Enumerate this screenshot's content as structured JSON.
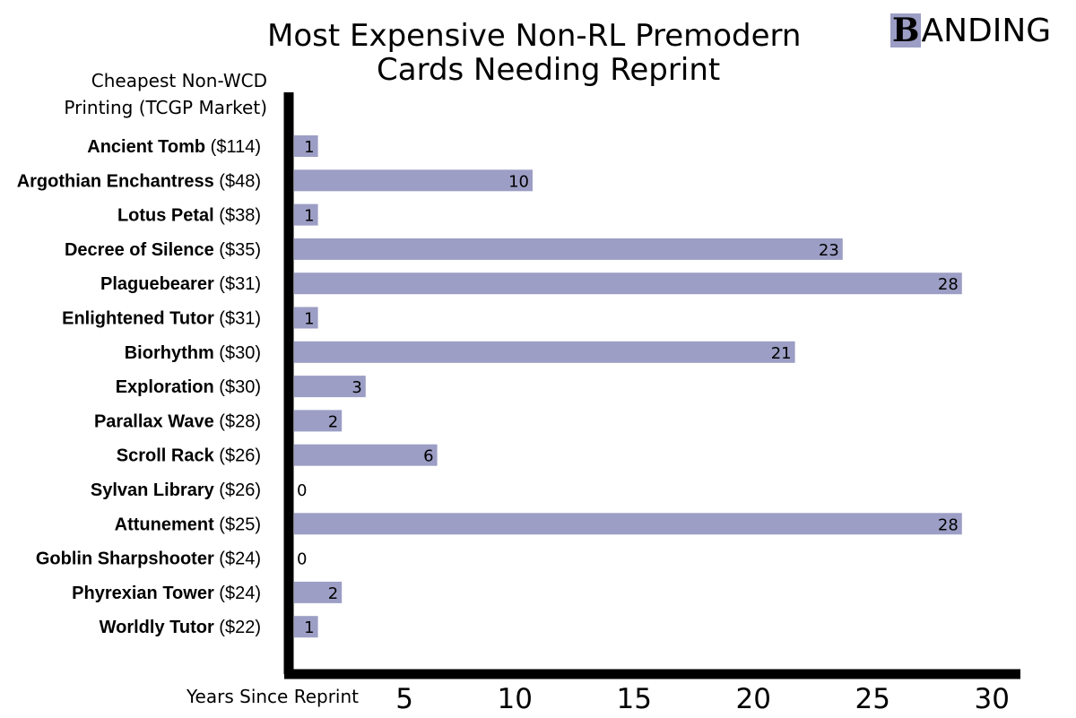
{
  "chart_data": {
    "type": "bar",
    "orientation": "horizontal",
    "title_line1": "Most Expensive Non-RL Premodern",
    "title_line2": "Cards Needing Reprint",
    "ylabel_line1": "Cheapest Non-WCD",
    "ylabel_line2": "Printing (TCGP Market)",
    "xlabel": "Years Since Reprint",
    "categories": [
      {
        "name": "Ancient Tomb",
        "price": "($114)"
      },
      {
        "name": "Argothian Enchantress",
        "price": "($48)"
      },
      {
        "name": "Lotus Petal",
        "price": "($38)"
      },
      {
        "name": "Decree of Silence",
        "price": "($35)"
      },
      {
        "name": "Plaguebearer",
        "price": "($31)"
      },
      {
        "name": "Enlightened Tutor",
        "price": "($31)"
      },
      {
        "name": "Biorhythm",
        "price": "($30)"
      },
      {
        "name": "Exploration",
        "price": "($30)"
      },
      {
        "name": "Parallax Wave",
        "price": "($28)"
      },
      {
        "name": "Scroll Rack",
        "price": "($26)"
      },
      {
        "name": "Sylvan Library",
        "price": "($26)"
      },
      {
        "name": "Attunement",
        "price": "($25)"
      },
      {
        "name": "Goblin Sharpshooter",
        "price": "($24)"
      },
      {
        "name": "Phyrexian Tower",
        "price": "($24)"
      },
      {
        "name": "Worldly Tutor",
        "price": "($22)"
      }
    ],
    "values": [
      1,
      10,
      1,
      23,
      28,
      1,
      21,
      3,
      2,
      6,
      0,
      28,
      0,
      2,
      1
    ],
    "xticks": [
      5,
      10,
      15,
      20,
      25,
      30
    ],
    "xlim": [
      0,
      30
    ],
    "bar_color": "#9c9ec5",
    "axis_color": "#000000",
    "grid": false,
    "legend": "none"
  },
  "brand": {
    "logo_initial": "B",
    "logo_rest": "ANDING",
    "logo_color": "#9c9ec5"
  }
}
